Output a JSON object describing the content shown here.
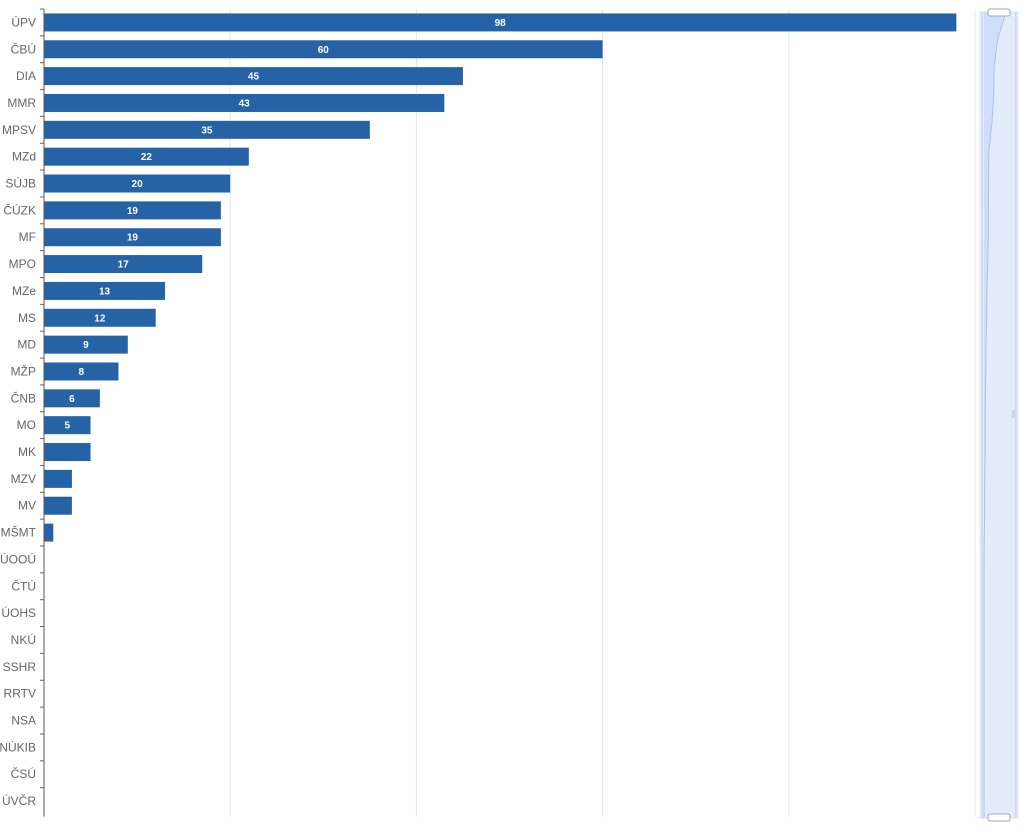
{
  "chart_data": {
    "type": "bar",
    "orientation": "horizontal",
    "categories": [
      "ÚPV",
      "ČBÚ",
      "DIA",
      "MMR",
      "MPSV",
      "MZd",
      "SÚJB",
      "ČÚZK",
      "MF",
      "MPO",
      "MZe",
      "MS",
      "MD",
      "MŽP",
      "ČNB",
      "MO",
      "MK",
      "MZV",
      "MV",
      "MŠMT",
      "ÚOOÚ",
      "ČTÚ",
      "ÚOHS",
      "NKÚ",
      "SSHR",
      "RRTV",
      "NSA",
      "NÚKIB",
      "ČSÚ",
      "ÚVČR"
    ],
    "values": [
      98,
      60,
      45,
      43,
      35,
      22,
      20,
      19,
      19,
      17,
      13,
      12,
      9,
      8,
      6,
      5,
      5,
      3,
      3,
      1,
      0,
      0,
      0,
      0,
      0,
      0,
      0,
      0,
      0,
      0
    ],
    "data_labels": [
      "98",
      "60",
      "45",
      "43",
      "35",
      "22",
      "20",
      "19",
      "19",
      "17",
      "13",
      "12",
      "9",
      "8",
      "6",
      "5",
      "",
      "",
      "",
      "",
      "",
      "",
      "",
      "",
      "",
      "",
      "",
      "",
      "",
      ""
    ],
    "xlim": [
      0,
      100
    ],
    "x_gridlines": [
      0,
      20,
      40,
      60,
      80,
      100
    ],
    "grid": true,
    "bar_color": "#2563a6",
    "zoom_slider": {
      "visible": true,
      "range": [
        0,
        100
      ]
    },
    "title": "",
    "xlabel": "",
    "ylabel": ""
  }
}
